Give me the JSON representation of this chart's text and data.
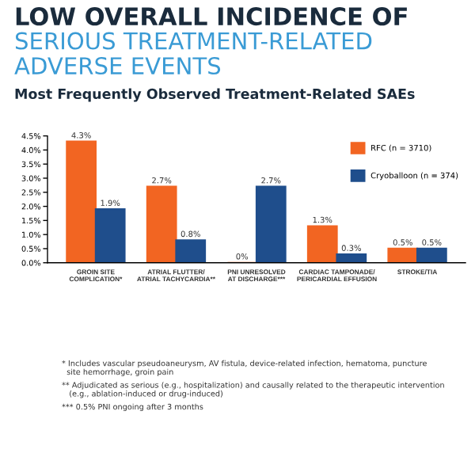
{
  "chart_data": {
    "type": "bar",
    "title": "LOW OVERALL INCIDENCE OF\nSERIOUS TREATMENT-RELATED\nADVERSE EVENTS",
    "subtitle": "Most Frequently Observed Treatment-Related SAEs",
    "categories": [
      "GROIN SITE\nCOMPLICATION*",
      "ATRIAL FLUTTER/\nATRIAL TACHYCARDIA**",
      "PNI UNRESOLVED\nAT DISCHARGE***",
      "CARDIAC TAMPONADE/\nPERICARDIAL EFFUSION",
      "STROKE/TIA"
    ],
    "series": [
      {
        "name": "RFC (n = 3710)",
        "color": "#f26522",
        "values": [
          4.3,
          2.7,
          0,
          1.3,
          0.5
        ],
        "value_labels": [
          "4.3%",
          "2.7%",
          "0%",
          "1.3%",
          "0.5%"
        ]
      },
      {
        "name": "Cryoballoon (n = 374)",
        "color": "#1f4e8c",
        "values": [
          1.9,
          0.8,
          2.7,
          0.3,
          0.5
        ],
        "value_labels": [
          "1.9%",
          "0.8%",
          "2.7%",
          "0.3%",
          "0.5%"
        ]
      }
    ],
    "ylim": [
      0,
      4.5
    ],
    "yticks": [
      {
        "value": 0,
        "label": "0.0%"
      },
      {
        "value": 0.5,
        "label": "0.5%"
      },
      {
        "value": 1,
        "label": "1.0%"
      },
      {
        "value": 1.5,
        "label": "1.5%"
      },
      {
        "value": 2,
        "label": "2.0%"
      },
      {
        "value": 2.5,
        "label": "2.5%"
      },
      {
        "value": 3,
        "label": "3.0%"
      },
      {
        "value": 3.5,
        "label": "3.5%"
      },
      {
        "value": 4,
        "label": "4.0%"
      },
      {
        "value": 4.5,
        "label": "4.5%"
      }
    ],
    "grid": false,
    "legend": "top right",
    "annotations": [
      "* Includes vascular pseudoaneurysm, AV fistula, device-related infection, hematoma, puncture\n  site hemorrhage, groin pain",
      "** Adjudicated as serious (e.g., hospitalization) and causally related to the therapeutic intervention\n   (e.g., ablation-induced or drug-induced)",
      "*** 0.5% PNI ongoing after 3 months"
    ]
  }
}
